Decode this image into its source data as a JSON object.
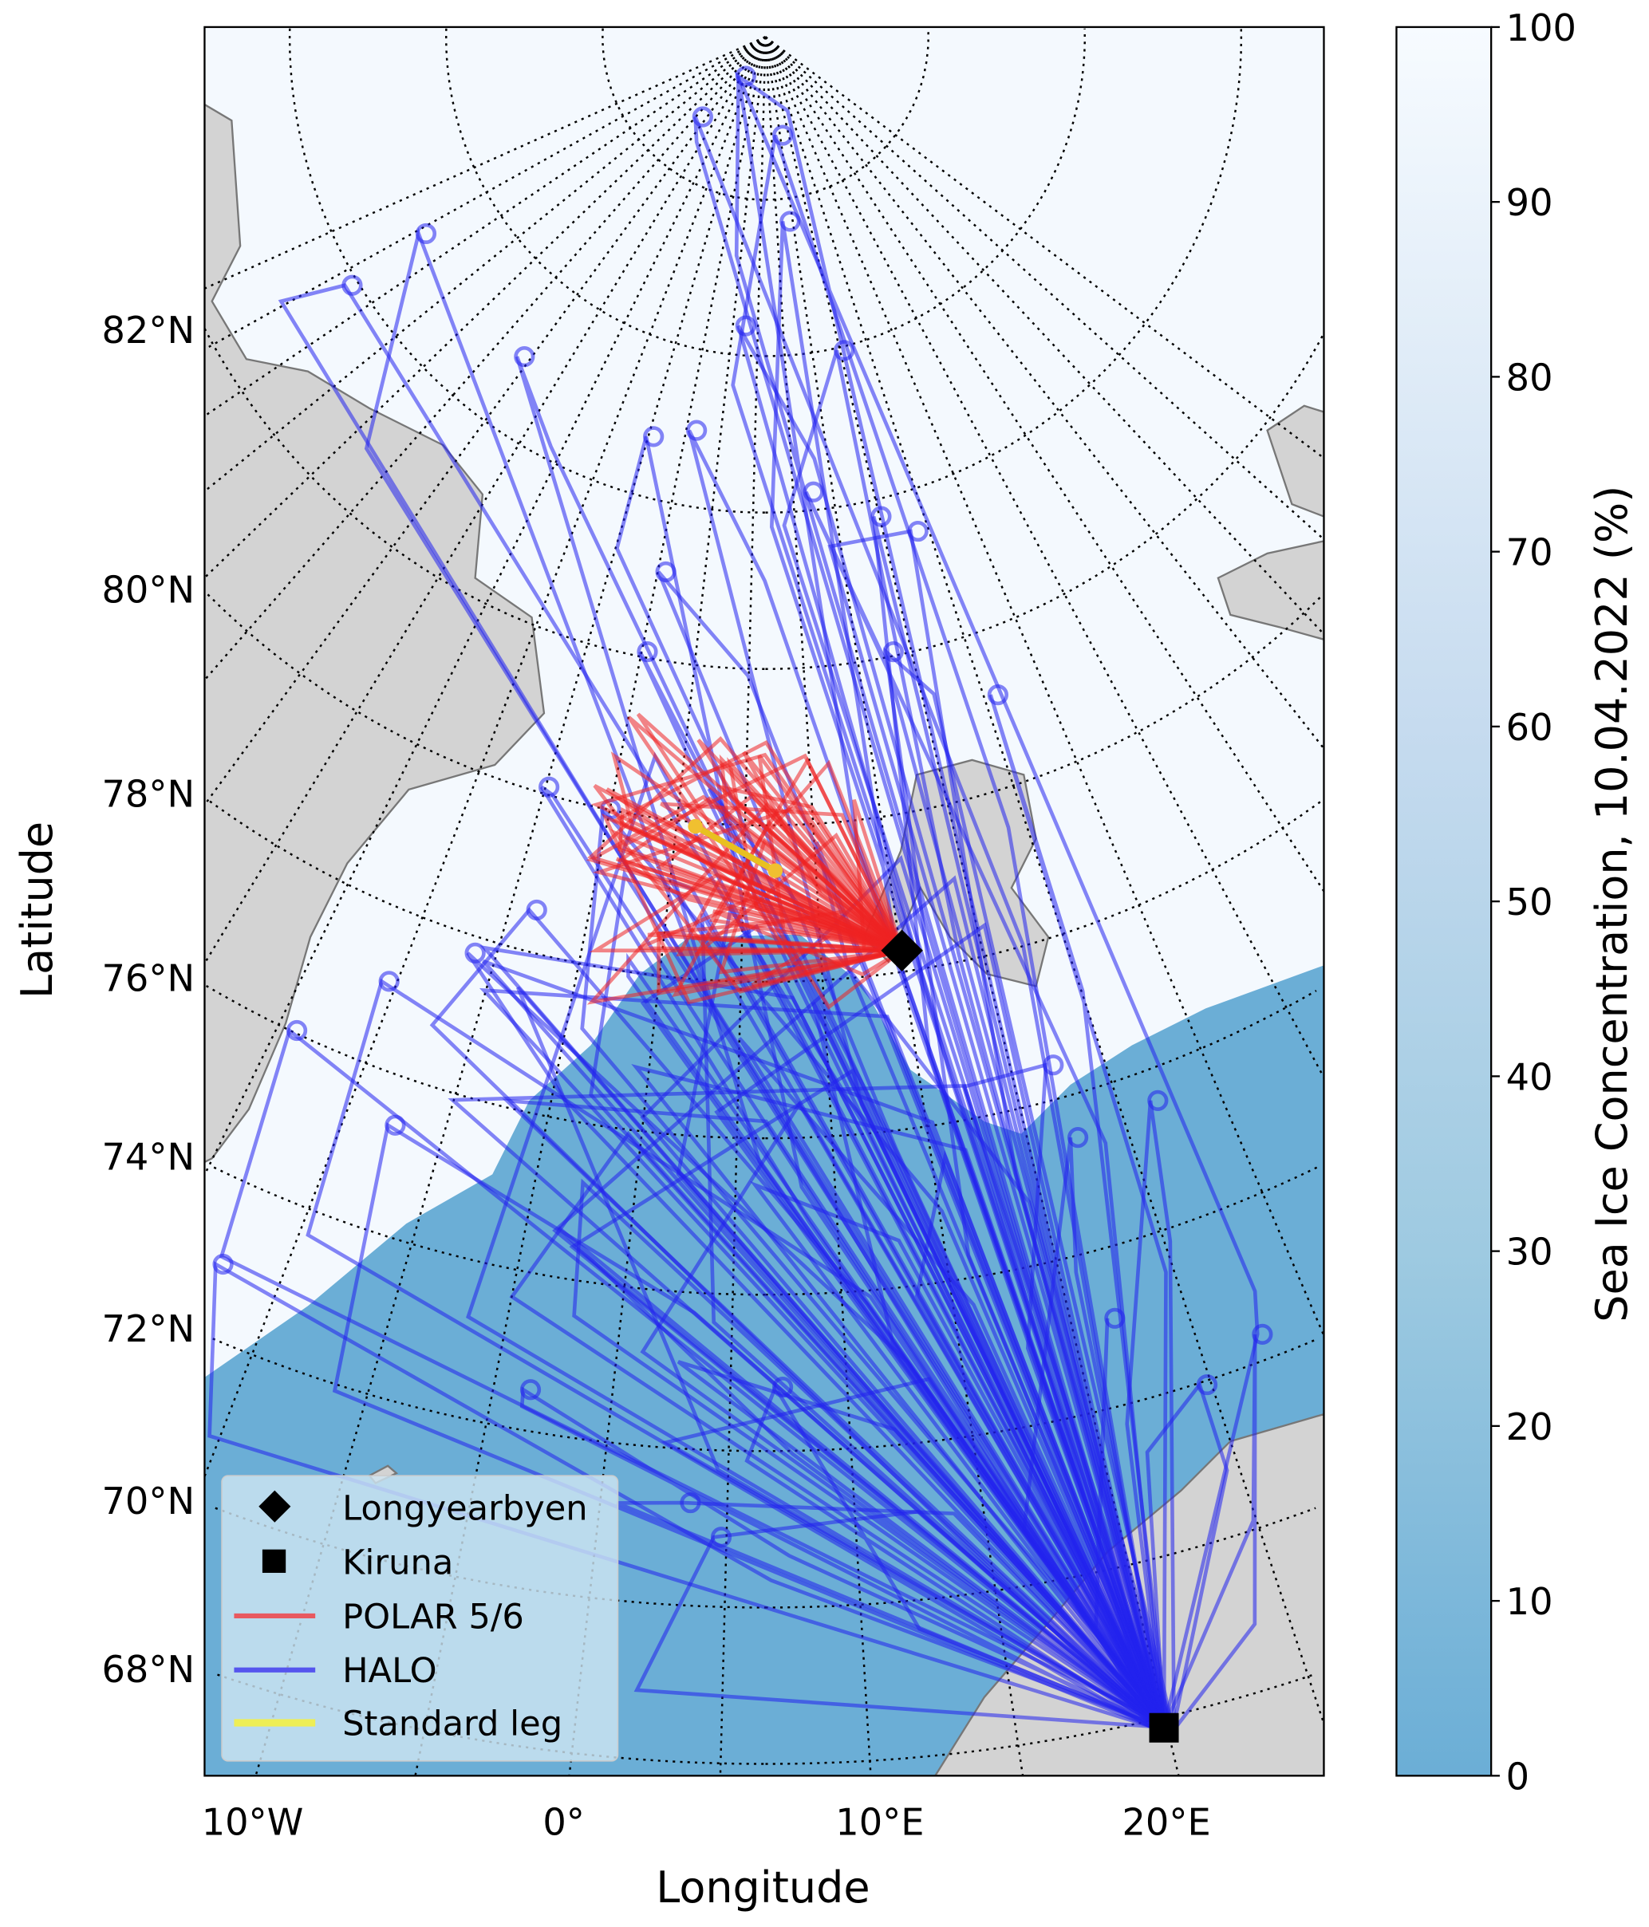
{
  "chart_data": {
    "type": "map",
    "projection": "north polar stereographic",
    "xlabel": "Longitude",
    "ylabel": "Latitude",
    "lon_ticks": [
      "10°W",
      "0°",
      "10°E",
      "20°E"
    ],
    "lat_ticks": [
      "82°N",
      "80°N",
      "78°N",
      "76°N",
      "74°N",
      "72°N",
      "70°N",
      "68°N"
    ],
    "colorbar": {
      "label": "Sea Ice Concentration, 10.04.2022 (%)",
      "range": [
        0,
        100
      ],
      "ticks": [
        "0",
        "10",
        "20",
        "30",
        "40",
        "50",
        "60",
        "70",
        "80",
        "90",
        "100"
      ],
      "color_low": "#6baed6",
      "color_high": "#f7fbff"
    },
    "legend": {
      "placement": "lower-left",
      "items": [
        {
          "label": "Longyearbyen",
          "marker": "diamond",
          "color": "#000000"
        },
        {
          "label": "Kiruna",
          "marker": "square",
          "color": "#000000"
        },
        {
          "label": "POLAR 5/6",
          "marker": "line",
          "color": "#e8595f"
        },
        {
          "label": "HALO",
          "marker": "line",
          "color": "#5555ee"
        },
        {
          "label": "Standard leg",
          "marker": "line",
          "color": "#eeee55"
        }
      ]
    },
    "locations": [
      {
        "name": "Longyearbyen",
        "lat": 78.2,
        "lon": 15.6
      },
      {
        "name": "Kiruna",
        "lat": 67.8,
        "lon": 20.3
      }
    ]
  }
}
